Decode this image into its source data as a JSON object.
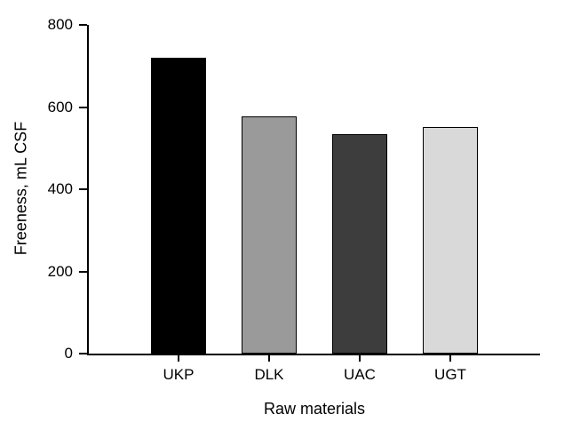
{
  "chart_data": {
    "type": "bar",
    "title": "",
    "xlabel": "Raw materials",
    "ylabel": "Freeness, mL CSF",
    "categories": [
      "UKP",
      "DLK",
      "UAC",
      "UGT"
    ],
    "values": [
      720,
      578,
      533,
      551
    ],
    "bar_colors": [
      "#000000",
      "#9a9a9a",
      "#3d3d3d",
      "#d9d9d9"
    ],
    "bar_border_color": "#000000",
    "ylim": [
      0,
      800
    ],
    "yticks": [
      0,
      200,
      400,
      600,
      800
    ],
    "grid": false,
    "legend": false,
    "background_color": "#ffffff",
    "axis_color": "#000000"
  }
}
